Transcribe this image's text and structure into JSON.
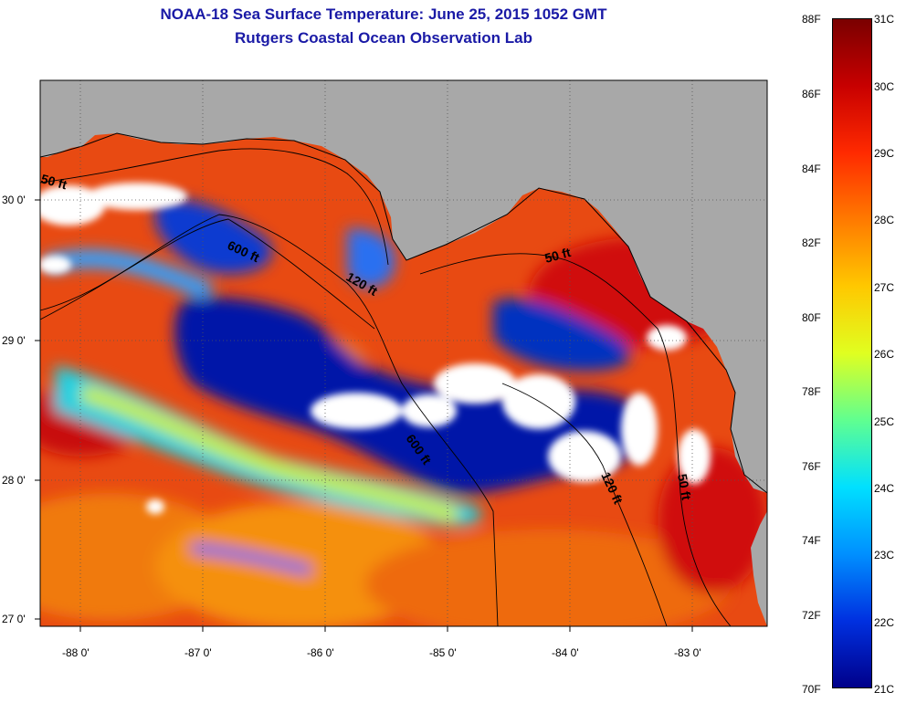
{
  "header": {
    "title": "NOAA-18 Sea Surface Temperature:  June 25, 2015 1052 GMT",
    "subtitle": "Rutgers Coastal Ocean Observation Lab"
  },
  "axes": {
    "lat_labels": [
      "30 0'",
      "29 0'",
      "28 0'",
      "27 0'"
    ],
    "lon_labels": [
      "-88 0'",
      "-87 0'",
      "-86 0'",
      "-85 0'",
      "-84 0'",
      "-83 0'"
    ]
  },
  "contours": {
    "labels": [
      "50 ft",
      "600 ft",
      "120 ft",
      "50 ft",
      "600 ft",
      "120 ft",
      "50 ft"
    ]
  },
  "colorbar": {
    "fahrenheit": [
      "88F",
      "86F",
      "84F",
      "82F",
      "80F",
      "78F",
      "76F",
      "74F",
      "72F",
      "70F"
    ],
    "celsius": [
      "31C",
      "30C",
      "29C",
      "28C",
      "27C",
      "26C",
      "25C",
      "24C",
      "23C",
      "22C",
      "21C"
    ],
    "gradient_top_to_bottom": [
      "#7a0000",
      "#c80000",
      "#ff2a00",
      "#ff7a00",
      "#ffc800",
      "#e0ff20",
      "#60ff90",
      "#00e0ff",
      "#0090ff",
      "#0030e0",
      "#00008a"
    ]
  },
  "colors": {
    "land": "#a8a8a8",
    "cloud": "#ffffff",
    "warm": "#e83a10",
    "cold": "#0018a0"
  }
}
